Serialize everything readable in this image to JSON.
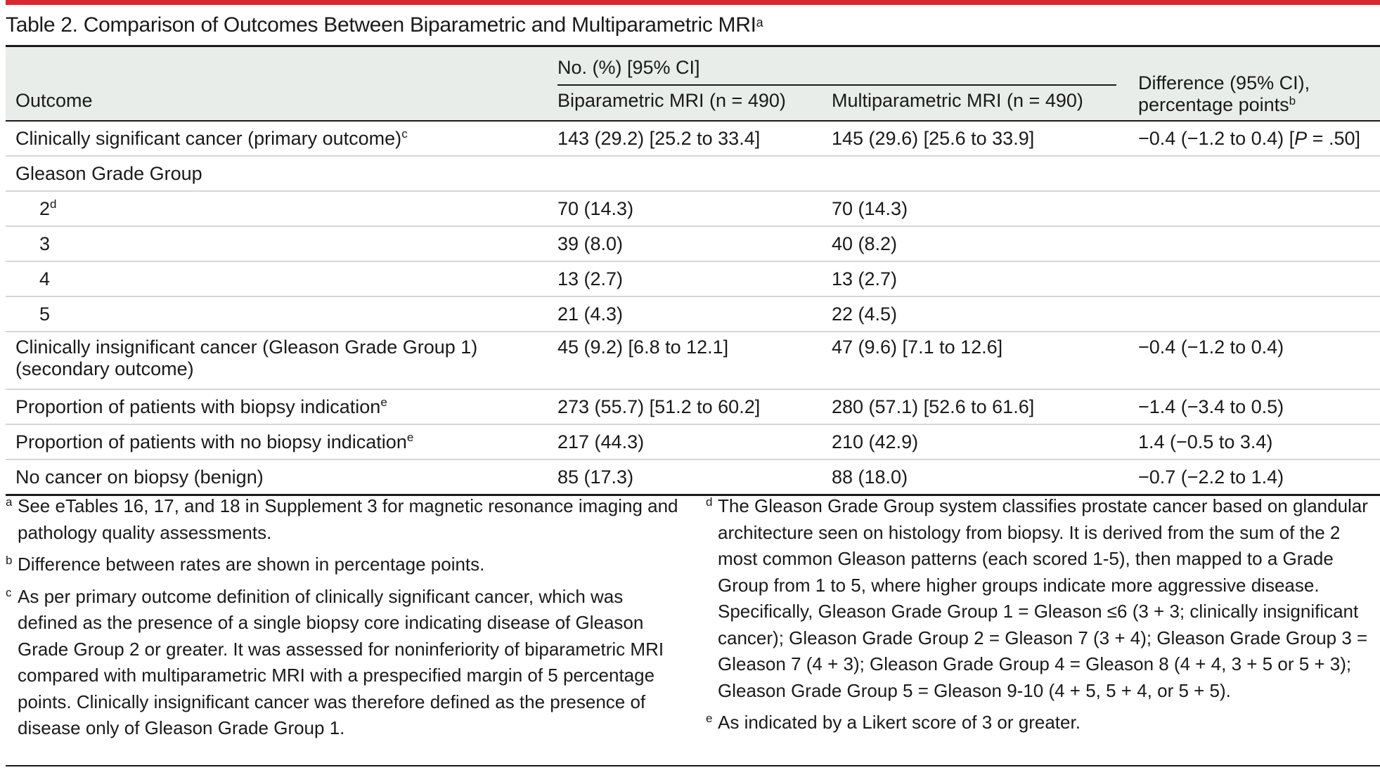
{
  "title": {
    "text": "Table 2. Comparison of Outcomes Between Biparametric and Multiparametric MRI",
    "footnote_mark": "a"
  },
  "table": {
    "header": {
      "outcome": "Outcome",
      "group_label": "No. (%) [95% CI]",
      "col_bi": "Biparametric MRI (n = 490)",
      "col_multi": "Multiparametric MRI (n = 490)",
      "col_diff_line1": "Difference (95% CI),",
      "col_diff_line2": "percentage points",
      "col_diff_mark": "b"
    },
    "rows": [
      {
        "outcome": "Clinically significant cancer (primary outcome)",
        "mark": "c",
        "bi": "143 (29.2) [25.2 to 33.4]",
        "multi": "145 (29.6) [25.6 to 33.9]",
        "diff_prefix": "−0.4 (−1.2 to 0.4) [",
        "diff_p": "P",
        "diff_suffix": " = .50]"
      },
      {
        "outcome": "Gleason Grade Group"
      },
      {
        "outcome": "2",
        "mark": "d",
        "bi": "70 (14.3)",
        "multi": "70 (14.3)"
      },
      {
        "outcome": "3",
        "bi": "39 (8.0)",
        "multi": "40 (8.2)"
      },
      {
        "outcome": "4",
        "bi": "13 (2.7)",
        "multi": "13 (2.7)"
      },
      {
        "outcome": "5",
        "bi": "21 (4.3)",
        "multi": "22 (4.5)"
      },
      {
        "outcome_line1": "Clinically insignificant cancer (Gleason Grade Group 1)",
        "outcome_line2": "(secondary outcome)",
        "bi": "45 (9.2) [6.8 to 12.1]",
        "multi": "47 (9.6) [7.1 to 12.6]",
        "diff": "−0.4 (−1.2 to 0.4)"
      },
      {
        "outcome": "Proportion of patients with biopsy indication",
        "mark": "e",
        "bi": "273 (55.7) [51.2 to 60.2]",
        "multi": "280 (57.1) [52.6 to 61.6]",
        "diff": "−1.4 (−3.4 to 0.5)"
      },
      {
        "outcome": "Proportion of patients with no biopsy indication",
        "mark": "e",
        "bi": "217 (44.3)",
        "multi": "210 (42.9)",
        "diff": "1.4 (−0.5 to 3.4)"
      },
      {
        "outcome": "No cancer on biopsy (benign)",
        "bi": "85 (17.3)",
        "multi": "88 (18.0)",
        "diff": "−0.7 (−2.2 to 1.4)"
      }
    ]
  },
  "footnotes": {
    "a": {
      "mark": "a",
      "text": "See eTables 16, 17, and 18 in Supplement 3 for magnetic resonance imaging and pathology quality assessments."
    },
    "b": {
      "mark": "b",
      "text": "Difference between rates are shown in percentage points."
    },
    "c": {
      "mark": "c",
      "text": "As per primary outcome definition of clinically significant cancer, which was defined as the presence of a single biopsy core indicating disease of Gleason Grade Group 2 or greater. It was assessed for noninferiority of biparametric MRI compared with multiparametric MRI with a prespecified margin of 5 percentage points. Clinically insignificant cancer was therefore defined as the presence of disease only of Gleason Grade Group 1."
    },
    "d": {
      "mark": "d",
      "text": "The Gleason Grade Group system classifies prostate cancer based on glandular architecture seen on histology from biopsy. It is derived from the sum of the 2 most common Gleason patterns (each scored 1-5), then mapped to a Grade Group from 1 to 5, where higher groups indicate more aggressive disease. Specifically, Gleason Grade Group 1 = Gleason ≤6 (3 + 3; clinically insignificant cancer); Gleason Grade Group 2 = Gleason 7 (3 + 4); Gleason Grade Group 3 = Gleason 7 (4 + 3); Gleason Grade Group 4 = Gleason 8 (4 + 4, 3 + 5 or 5 + 3); Gleason Grade Group 5 = Gleason 9-10 (4 + 5, 5 + 4, or 5 + 5)."
    },
    "e": {
      "mark": "e",
      "text": "As indicated by a Likert score of 3 or greater."
    }
  }
}
